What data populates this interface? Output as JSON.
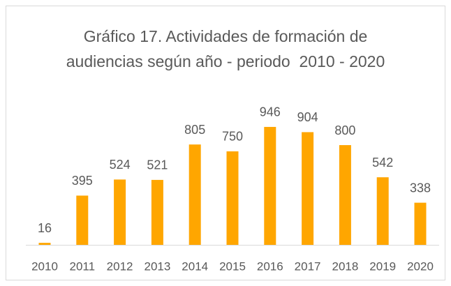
{
  "chart_data": {
    "type": "bar",
    "title": "Gráfico 17. Actividades de formación de audiencias según año - periodo  2010 - 2020",
    "categories": [
      "2010",
      "2011",
      "2012",
      "2013",
      "2014",
      "2015",
      "2016",
      "2017",
      "2018",
      "2019",
      "2020"
    ],
    "values": [
      16,
      395,
      524,
      521,
      805,
      750,
      946,
      904,
      800,
      542,
      338
    ],
    "color": "#ffa600"
  }
}
